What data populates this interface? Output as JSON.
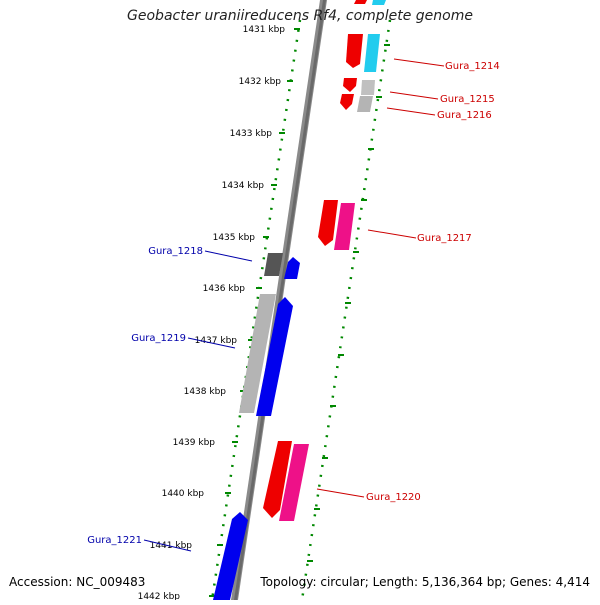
{
  "title": "Geobacter uraniireducens Rf4, complete genome",
  "footer": {
    "accession": "Accession: NC_009483",
    "summary": "Topology: circular; Length: 5,136,364 bp; Genes: 4,414"
  },
  "scale": {
    "first_label": "1431 kbp",
    "labels": [
      "1432 kbp",
      "1433 kbp",
      "1434 kbp",
      "1435 kbp",
      "1436 kbp",
      "1437 kbp",
      "1438 kbp",
      "1439 kbp",
      "1440 kbp",
      "1441 kbp",
      "1442 kbp"
    ]
  },
  "genes": {
    "forward": [
      {
        "name": "Gura_1214"
      },
      {
        "name": "Gura_1215"
      },
      {
        "name": "Gura_1216"
      },
      {
        "name": "Gura_1217"
      },
      {
        "name": "Gura_1220"
      }
    ],
    "reverse": [
      {
        "name": "Gura_1218"
      },
      {
        "name": "Gura_1219"
      },
      {
        "name": "Gura_1221"
      }
    ]
  },
  "colors": {
    "forward_label": "#cc0000",
    "reverse_label": "#0000aa",
    "red": "#ee0000",
    "pink": "#ee1188",
    "cyan": "#22ccee",
    "blue": "#0000ee",
    "gray": "#b4b4b4",
    "darkgray": "#555555",
    "backbone": "#808080",
    "ticks": "#008800"
  }
}
